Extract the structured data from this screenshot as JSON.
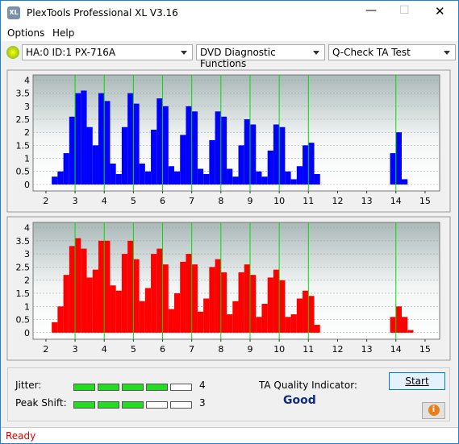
{
  "window": {
    "title": "PlexTools Professional XL V3.16",
    "menu": [
      "Options",
      "Help"
    ],
    "drive": "HA:0 ID:1  PX-716A",
    "function": "DVD Diagnostic Functions",
    "test": "Q-Check TA Test"
  },
  "chart_data": [
    {
      "type": "histogram",
      "color": "#0000ff",
      "bins": [
        2.2,
        2.4,
        2.6,
        2.8,
        3.0,
        3.2,
        3.4,
        3.6,
        3.8,
        4.0,
        4.2,
        4.4,
        4.6,
        4.8,
        5.0,
        5.2,
        5.4,
        5.6,
        5.8,
        6.0,
        6.2,
        6.4,
        6.6,
        6.8,
        7.0,
        7.2,
        7.4,
        7.6,
        7.8,
        8.0,
        8.2,
        8.4,
        8.6,
        8.8,
        9.0,
        9.2,
        9.4,
        9.6,
        9.8,
        10.0,
        10.2,
        10.4,
        10.6,
        10.8,
        11.0,
        11.2,
        11.4,
        11.6,
        11.8,
        12.0,
        12.2,
        12.4,
        12.6,
        12.8,
        13.0,
        13.2,
        13.4,
        13.6,
        13.8,
        14.0,
        14.2,
        14.4,
        14.6
      ],
      "values": [
        0.3,
        0.5,
        1.2,
        2.6,
        3.5,
        3.6,
        2.2,
        1.5,
        3.5,
        3.2,
        0.8,
        0.4,
        2.2,
        3.5,
        3.1,
        0.8,
        0.5,
        2.1,
        3.3,
        3.0,
        0.7,
        0.5,
        1.9,
        3.0,
        2.8,
        0.6,
        0.4,
        1.7,
        2.8,
        2.6,
        0.6,
        0.3,
        1.5,
        2.5,
        2.3,
        0.5,
        0.3,
        1.3,
        2.3,
        2.2,
        0.5,
        0.2,
        0.7,
        1.5,
        1.6,
        0.4,
        0,
        0,
        0,
        0,
        0,
        0,
        0,
        0,
        0,
        0,
        0,
        0,
        1.2,
        2.0,
        0.2,
        0
      ],
      "xlim": [
        1.56,
        15.5
      ],
      "ylim": [
        -0.25,
        4.2
      ],
      "xticks": [
        2,
        3,
        4,
        5,
        6,
        7,
        8,
        9,
        10,
        11,
        12,
        13,
        14,
        15
      ],
      "yticks": [
        0,
        0.5,
        1,
        1.5,
        2,
        2.5,
        3,
        3.5,
        4
      ],
      "reference_lines": [
        3,
        4,
        5,
        6,
        7,
        8,
        9,
        10,
        11,
        14
      ],
      "reference_color": "#00dd00",
      "grid": true
    },
    {
      "type": "histogram",
      "color": "#ff0000",
      "bins": [
        2.2,
        2.4,
        2.6,
        2.8,
        3.0,
        3.2,
        3.4,
        3.6,
        3.8,
        4.0,
        4.2,
        4.4,
        4.6,
        4.8,
        5.0,
        5.2,
        5.4,
        5.6,
        5.8,
        6.0,
        6.2,
        6.4,
        6.6,
        6.8,
        7.0,
        7.2,
        7.4,
        7.6,
        7.8,
        8.0,
        8.2,
        8.4,
        8.6,
        8.8,
        9.0,
        9.2,
        9.4,
        9.6,
        9.8,
        10.0,
        10.2,
        10.4,
        10.6,
        10.8,
        11.0,
        11.2,
        11.4,
        11.6,
        11.8,
        12.0,
        12.2,
        12.4,
        12.6,
        12.8,
        13.0,
        13.2,
        13.4,
        13.6,
        13.8,
        14.0,
        14.2,
        14.4,
        14.6
      ],
      "values": [
        0.4,
        1.0,
        2.2,
        3.3,
        3.6,
        3.2,
        2.1,
        2.4,
        3.5,
        3.5,
        1.8,
        1.6,
        3.0,
        3.5,
        2.8,
        1.2,
        1.7,
        3.0,
        3.2,
        2.6,
        0.9,
        1.5,
        2.7,
        3.0,
        2.6,
        0.8,
        1.3,
        2.5,
        2.8,
        2.3,
        0.7,
        1.2,
        2.3,
        2.6,
        2.2,
        0.6,
        1.1,
        2.1,
        2.4,
        2.0,
        0.6,
        0.7,
        1.3,
        1.6,
        1.4,
        0.3,
        0,
        0,
        0,
        0,
        0,
        0,
        0,
        0,
        0,
        0,
        0,
        0,
        0.6,
        1.0,
        0.6,
        0.1
      ],
      "xlim": [
        1.56,
        15.5
      ],
      "ylim": [
        -0.25,
        4.2
      ],
      "xticks": [
        2,
        3,
        4,
        5,
        6,
        7,
        8,
        9,
        10,
        11,
        12,
        13,
        14,
        15
      ],
      "yticks": [
        0,
        0.5,
        1,
        1.5,
        2,
        2.5,
        3,
        3.5,
        4
      ],
      "reference_lines": [
        3,
        4,
        5,
        6,
        7,
        8,
        9,
        10,
        11,
        14
      ],
      "reference_color": "#00dd00",
      "grid": true
    }
  ],
  "results": {
    "jitter": {
      "label": "Jitter:",
      "value": 4,
      "scale_max": 5
    },
    "peak_shift": {
      "label": "Peak Shift:",
      "value": 3,
      "scale_max": 5
    },
    "ta_label": "TA Quality Indicator:",
    "ta_value": "Good",
    "start": "Start"
  },
  "status": "Ready"
}
